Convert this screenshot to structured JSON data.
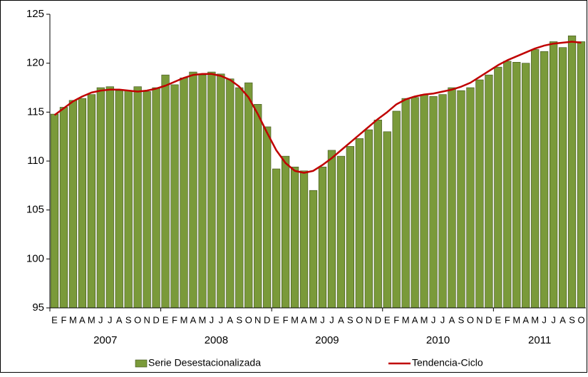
{
  "chart_data": {
    "type": "bar",
    "categories": [
      "E",
      "F",
      "M",
      "A",
      "M",
      "J",
      "J",
      "A",
      "S",
      "O",
      "N",
      "D",
      "E",
      "F",
      "M",
      "A",
      "M",
      "J",
      "J",
      "A",
      "S",
      "O",
      "N",
      "D",
      "E",
      "F",
      "M",
      "A",
      "M",
      "J",
      "J",
      "A",
      "S",
      "O",
      "N",
      "D",
      "E",
      "F",
      "M",
      "A",
      "M",
      "J",
      "J",
      "A",
      "S",
      "O",
      "N",
      "D",
      "E",
      "F",
      "M",
      "A",
      "M",
      "J",
      "J",
      "A",
      "S",
      "O"
    ],
    "years": [
      "2007",
      "2008",
      "2009",
      "2010",
      "2011"
    ],
    "series": [
      {
        "name": "Serie Desestacionalizada",
        "type": "bar",
        "color": "#7a9a3a",
        "values": [
          114.8,
          115.5,
          116.2,
          116.4,
          116.8,
          117.5,
          117.6,
          117.2,
          117.2,
          117.6,
          117.1,
          117.5,
          118.8,
          117.8,
          118.5,
          119.1,
          118.8,
          119.1,
          118.9,
          118.4,
          117.5,
          118.0,
          115.8,
          113.5,
          109.2,
          110.5,
          109.4,
          109.0,
          107.0,
          109.4,
          111.1,
          110.5,
          111.5,
          112.3,
          113.2,
          114.2,
          113.0,
          115.1,
          116.4,
          116.5,
          116.8,
          116.6,
          116.8,
          117.5,
          117.2,
          117.5,
          118.3,
          118.8,
          119.6,
          120.2,
          120.1,
          120.0,
          121.4,
          121.2,
          122.2,
          121.6,
          122.8,
          122.2
        ]
      },
      {
        "name": "Tendencia-Ciclo",
        "type": "line",
        "color": "#c00000",
        "values": [
          114.7,
          115.4,
          116.1,
          116.6,
          117.0,
          117.2,
          117.3,
          117.3,
          117.2,
          117.1,
          117.2,
          117.4,
          117.7,
          118.1,
          118.5,
          118.8,
          118.9,
          118.9,
          118.7,
          118.3,
          117.6,
          116.5,
          114.8,
          112.9,
          111.1,
          109.8,
          109.0,
          108.8,
          109.0,
          109.6,
          110.3,
          111.1,
          111.9,
          112.7,
          113.5,
          114.3,
          115.0,
          115.8,
          116.3,
          116.6,
          116.8,
          116.9,
          117.1,
          117.3,
          117.6,
          118.0,
          118.6,
          119.2,
          119.8,
          120.3,
          120.7,
          121.1,
          121.5,
          121.8,
          122.0,
          122.1,
          122.2,
          122.1
        ]
      }
    ],
    "ylim": [
      95,
      125
    ],
    "yticks": [
      95,
      100,
      105,
      110,
      115,
      120,
      125
    ],
    "grid": false,
    "legend": "bottom"
  }
}
